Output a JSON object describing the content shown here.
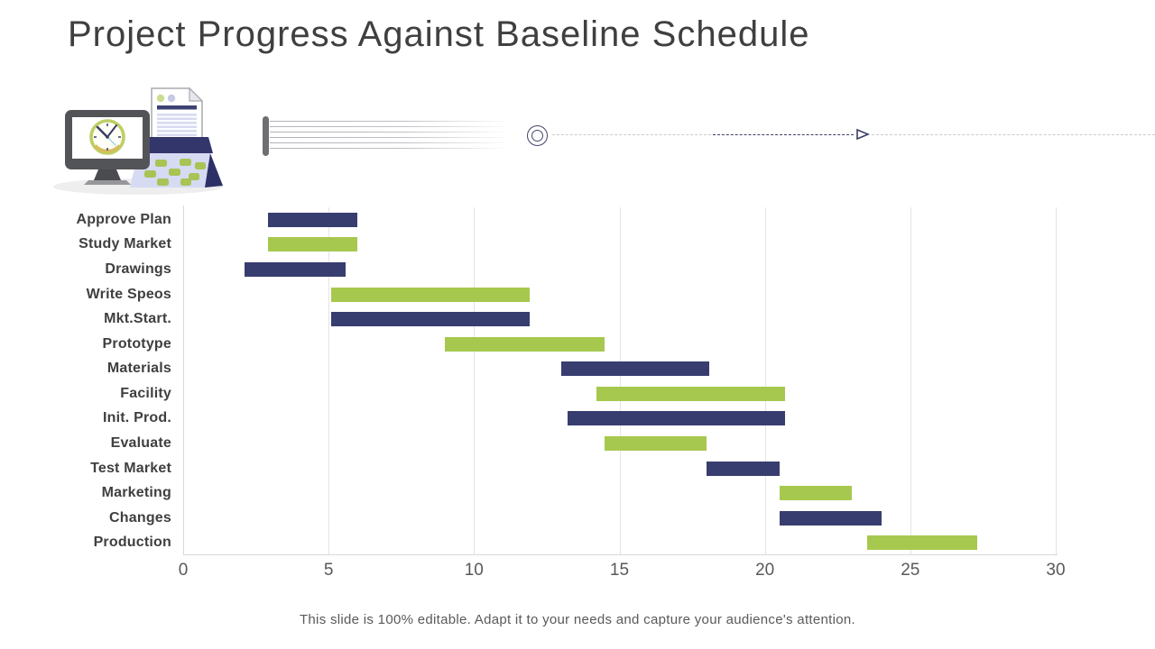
{
  "title": "Project Progress Against Baseline Schedule",
  "footer": "This slide is 100% editable. Adapt it to your needs and capture your audience's attention.",
  "icons": {
    "illustration": "monitor-with-clock-document-calendar",
    "timeline_node": "double-circle",
    "timeline_arrow": "right-open-triangle-arrow"
  },
  "colors": {
    "navy": "#383d6f",
    "green": "#a7c84e",
    "grid": "#e4e4e7",
    "axis": "#d9d9dc",
    "category_label": "#3f3f3f",
    "tick_label": "#595959",
    "title": "#3f3f3f",
    "footer": "#595959",
    "dash_dark": "#3a3f63",
    "dash_light": "#c9c9ce"
  },
  "chart_data": {
    "type": "bar",
    "subtype": "gantt",
    "orientation": "horizontal",
    "title": "",
    "xlabel": "",
    "ylabel": "",
    "xlim": [
      0,
      30
    ],
    "xticks": [
      0,
      5,
      10,
      15,
      20,
      25,
      30
    ],
    "grid": "vertical-only",
    "legend": "none",
    "tasks": [
      {
        "label": "Approve Plan",
        "start": 2.9,
        "end": 6.0,
        "color": "navy"
      },
      {
        "label": "Study Market",
        "start": 2.9,
        "end": 6.0,
        "color": "green"
      },
      {
        "label": "Drawings",
        "start": 2.1,
        "end": 5.6,
        "color": "navy"
      },
      {
        "label": "Write Speos",
        "start": 5.1,
        "end": 11.9,
        "color": "green"
      },
      {
        "label": "Mkt.Start.",
        "start": 5.1,
        "end": 11.9,
        "color": "navy"
      },
      {
        "label": "Prototype",
        "start": 9.0,
        "end": 14.5,
        "color": "green"
      },
      {
        "label": "Materials",
        "start": 13.0,
        "end": 18.1,
        "color": "navy"
      },
      {
        "label": "Facility",
        "start": 14.2,
        "end": 20.7,
        "color": "green"
      },
      {
        "label": "Init. Prod.",
        "start": 13.2,
        "end": 20.7,
        "color": "navy"
      },
      {
        "label": "Evaluate",
        "start": 14.5,
        "end": 18.0,
        "color": "green"
      },
      {
        "label": "Test Market",
        "start": 18.0,
        "end": 20.5,
        "color": "navy"
      },
      {
        "label": "Marketing",
        "start": 20.5,
        "end": 23.0,
        "color": "green"
      },
      {
        "label": "Changes",
        "start": 20.5,
        "end": 24.0,
        "color": "navy"
      },
      {
        "label": "Production",
        "start": 23.5,
        "end": 27.3,
        "color": "green"
      }
    ]
  }
}
